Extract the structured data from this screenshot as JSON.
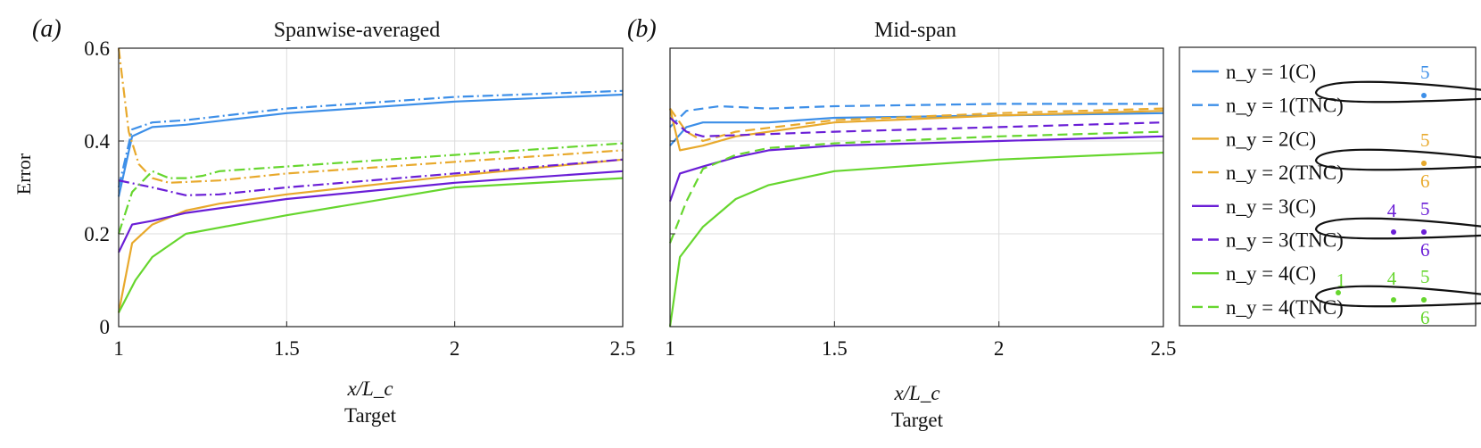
{
  "colors": {
    "blue": "#3d8fe8",
    "orange": "#e8a92c",
    "purple": "#6a1ed6",
    "green": "#66d62e",
    "grid": "#dcdcdc"
  },
  "legend": {
    "items": [
      {
        "label": "n_y = 1(C)",
        "color": "blue",
        "style": "solid"
      },
      {
        "label": "n_y = 1(TNC)",
        "color": "blue",
        "style": "dashed"
      },
      {
        "label": "n_y = 2(C)",
        "color": "orange",
        "style": "solid"
      },
      {
        "label": "n_y = 2(TNC)",
        "color": "orange",
        "style": "dashed"
      },
      {
        "label": "n_y = 3(C)",
        "color": "purple",
        "style": "solid"
      },
      {
        "label": "n_y = 3(TNC)",
        "color": "purple",
        "style": "dashed"
      },
      {
        "label": "n_y = 4(C)",
        "color": "green",
        "style": "solid"
      },
      {
        "label": "n_y = 4(TNC)",
        "color": "green",
        "style": "dashed"
      }
    ],
    "sensor_glyphs": [
      {
        "color": "blue",
        "labels": [
          "5"
        ]
      },
      {
        "color": "orange",
        "labels": [
          "5",
          "6"
        ]
      },
      {
        "color": "purple",
        "labels": [
          "4",
          "5",
          "6"
        ]
      },
      {
        "color": "green",
        "labels": [
          "1",
          "4",
          "5",
          "6"
        ]
      }
    ]
  },
  "chart_data": [
    {
      "panel": "(a)",
      "type": "line",
      "title": "Spanwise-averaged",
      "xlabel": "x/L_c",
      "xsublabel": "Target",
      "ylabel": "Error",
      "xlim": [
        1,
        2.5
      ],
      "ylim": [
        0,
        0.6
      ],
      "xticks": [
        1,
        1.5,
        2,
        2.5
      ],
      "xtick_labels": [
        "1",
        "1.5",
        "2",
        "2.5"
      ],
      "yticks": [
        0,
        0.2,
        0.4,
        0.6
      ],
      "ytick_labels": [
        "0",
        "0.2",
        "0.4",
        "0.6"
      ],
      "grid": true,
      "series": [
        {
          "name": "n_y = 1(C)",
          "color": "blue",
          "style": "solid",
          "x": [
            1,
            1.04,
            1.1,
            1.2,
            1.5,
            2.0,
            2.5
          ],
          "y": [
            0.28,
            0.41,
            0.43,
            0.435,
            0.46,
            0.485,
            0.5
          ]
        },
        {
          "name": "n_y = 1(TNC)",
          "color": "blue",
          "style": "dashdot",
          "x": [
            1,
            1.04,
            1.1,
            1.2,
            1.5,
            2.0,
            2.5
          ],
          "y": [
            0.3,
            0.425,
            0.44,
            0.445,
            0.47,
            0.495,
            0.508
          ]
        },
        {
          "name": "n_y = 2(C)",
          "color": "orange",
          "style": "solid",
          "x": [
            1,
            1.04,
            1.1,
            1.2,
            1.3,
            1.5,
            2.0,
            2.5
          ],
          "y": [
            0.03,
            0.18,
            0.22,
            0.25,
            0.265,
            0.285,
            0.325,
            0.36
          ]
        },
        {
          "name": "n_y = 2(TNC)",
          "color": "orange",
          "style": "dashdot",
          "x": [
            1,
            1.03,
            1.06,
            1.1,
            1.15,
            1.3,
            1.5,
            2.0,
            2.5
          ],
          "y": [
            0.6,
            0.42,
            0.35,
            0.32,
            0.31,
            0.315,
            0.33,
            0.355,
            0.38
          ]
        },
        {
          "name": "n_y = 3(C)",
          "color": "purple",
          "style": "solid",
          "x": [
            1,
            1.04,
            1.1,
            1.2,
            1.5,
            2.0,
            2.5
          ],
          "y": [
            0.16,
            0.22,
            0.228,
            0.245,
            0.275,
            0.31,
            0.335
          ]
        },
        {
          "name": "n_y = 3(TNC)",
          "color": "purple",
          "style": "dashdot",
          "x": [
            1,
            1.1,
            1.2,
            1.3,
            1.5,
            2.0,
            2.5
          ],
          "y": [
            0.315,
            0.3,
            0.283,
            0.285,
            0.3,
            0.33,
            0.36
          ]
        },
        {
          "name": "n_y = 4(C)",
          "color": "green",
          "style": "solid",
          "x": [
            1,
            1.05,
            1.1,
            1.2,
            1.5,
            2.0,
            2.5
          ],
          "y": [
            0.03,
            0.1,
            0.15,
            0.2,
            0.24,
            0.3,
            0.32
          ]
        },
        {
          "name": "n_y = 4(TNC)",
          "color": "green",
          "style": "dashdot",
          "x": [
            1,
            1.04,
            1.1,
            1.15,
            1.2,
            1.25,
            1.3,
            1.5,
            2.0,
            2.5
          ],
          "y": [
            0.2,
            0.29,
            0.335,
            0.32,
            0.32,
            0.325,
            0.335,
            0.345,
            0.37,
            0.395
          ]
        }
      ]
    },
    {
      "panel": "(b)",
      "type": "line",
      "title": "Mid-span",
      "xlabel": "x/L_c",
      "xsublabel": "Target",
      "xlim": [
        1,
        2.5
      ],
      "ylim": [
        0,
        0.6
      ],
      "xticks": [
        1,
        1.5,
        2,
        2.5
      ],
      "xtick_labels": [
        "1",
        "1.5",
        "2",
        "2.5"
      ],
      "yticks": [
        0,
        0.2,
        0.4,
        0.6
      ],
      "grid": true,
      "series": [
        {
          "name": "n_y = 1(C)",
          "color": "blue",
          "style": "solid",
          "x": [
            1,
            1.05,
            1.1,
            1.3,
            1.5,
            2.0,
            2.5
          ],
          "y": [
            0.39,
            0.43,
            0.44,
            0.44,
            0.45,
            0.455,
            0.46
          ]
        },
        {
          "name": "n_y = 1(TNC)",
          "color": "blue",
          "style": "dashed",
          "x": [
            1,
            1.05,
            1.15,
            1.3,
            1.5,
            2.0,
            2.5
          ],
          "y": [
            0.43,
            0.465,
            0.475,
            0.47,
            0.475,
            0.48,
            0.48
          ]
        },
        {
          "name": "n_y = 2(C)",
          "color": "orange",
          "style": "solid",
          "x": [
            1,
            1.03,
            1.1,
            1.2,
            1.5,
            2.0,
            2.5
          ],
          "y": [
            0.47,
            0.38,
            0.39,
            0.41,
            0.44,
            0.455,
            0.465
          ]
        },
        {
          "name": "n_y = 2(TNC)",
          "color": "orange",
          "style": "dashed",
          "x": [
            1,
            1.05,
            1.1,
            1.2,
            1.5,
            2.0,
            2.5
          ],
          "y": [
            0.47,
            0.42,
            0.4,
            0.42,
            0.445,
            0.46,
            0.47
          ]
        },
        {
          "name": "n_y = 3(C)",
          "color": "purple",
          "style": "solid",
          "x": [
            1,
            1.03,
            1.1,
            1.2,
            1.3,
            1.5,
            2.0,
            2.5
          ],
          "y": [
            0.27,
            0.33,
            0.345,
            0.365,
            0.38,
            0.39,
            0.4,
            0.41
          ]
        },
        {
          "name": "n_y = 3(TNC)",
          "color": "purple",
          "style": "dashed",
          "x": [
            1,
            1.05,
            1.1,
            1.3,
            1.5,
            2.0,
            2.5
          ],
          "y": [
            0.45,
            0.42,
            0.41,
            0.415,
            0.42,
            0.43,
            0.44
          ]
        },
        {
          "name": "n_y = 4(C)",
          "color": "green",
          "style": "solid",
          "x": [
            1,
            1.03,
            1.1,
            1.2,
            1.3,
            1.5,
            2.0,
            2.5
          ],
          "y": [
            0.0,
            0.15,
            0.215,
            0.275,
            0.305,
            0.335,
            0.36,
            0.375
          ]
        },
        {
          "name": "n_y = 4(TNC)",
          "color": "green",
          "style": "dashed",
          "x": [
            1,
            1.05,
            1.1,
            1.2,
            1.3,
            1.5,
            2.0,
            2.5
          ],
          "y": [
            0.18,
            0.27,
            0.34,
            0.37,
            0.385,
            0.395,
            0.41,
            0.42
          ]
        }
      ]
    }
  ]
}
